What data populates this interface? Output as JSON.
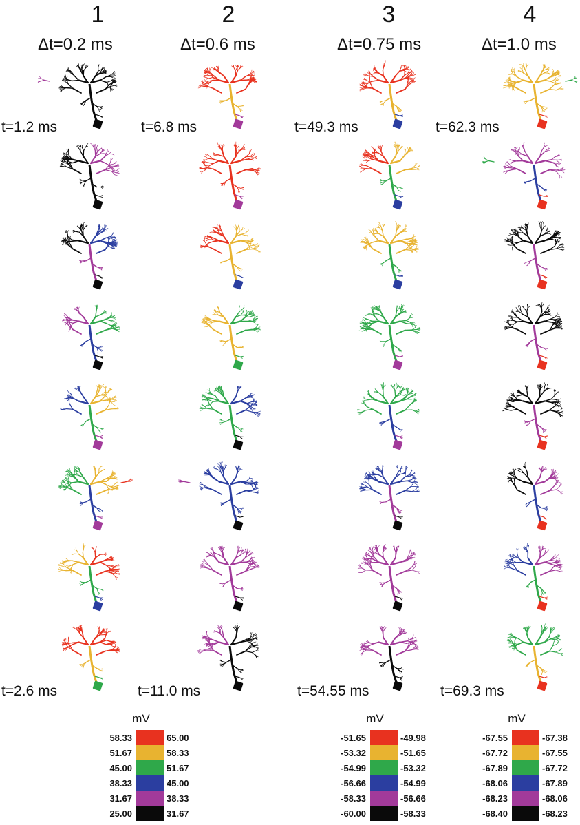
{
  "columns": [
    {
      "number": "1",
      "dt": "Δt=0.2 ms",
      "t_start": "t=1.2 ms",
      "t_end": "t=2.6 ms",
      "rows": [
        {
          "L": "black",
          "R": "black",
          "S": "black",
          "D": "black",
          "far": "purple"
        },
        {
          "L": "black",
          "R": "purple",
          "S": "black",
          "D": "black"
        },
        {
          "L": "black",
          "R": "blue",
          "S": "purple",
          "D": "black"
        },
        {
          "L": "purple",
          "R": "green",
          "S": "blue",
          "D": "black"
        },
        {
          "L": "blue",
          "R": "yellow",
          "S": "green",
          "D": "purple"
        },
        {
          "L": "green",
          "R": "yellow",
          "S": "blue",
          "D": "purple",
          "far": "red"
        },
        {
          "L": "yellow",
          "R": "red",
          "S": "green",
          "D": "blue"
        },
        {
          "L": "red",
          "R": "red",
          "S": "yellow",
          "D": "green"
        }
      ]
    },
    {
      "number": "2",
      "dt": "Δt=0.6 ms",
      "t_start": "t=6.8 ms",
      "t_end": "t=11.0 ms",
      "rows": [
        {
          "L": "red",
          "R": "red",
          "S": "yellow",
          "D": "purple"
        },
        {
          "L": "red",
          "R": "red",
          "S": "red",
          "D": "purple"
        },
        {
          "L": "red",
          "R": "yellow",
          "S": "yellow",
          "D": "blue"
        },
        {
          "L": "yellow",
          "R": "green",
          "S": "yellow",
          "D": "green"
        },
        {
          "L": "green",
          "R": "blue",
          "S": "green",
          "D": "black"
        },
        {
          "L": "blue",
          "R": "blue",
          "S": "blue",
          "D": "black",
          "far": "purple"
        },
        {
          "L": "purple",
          "R": "purple",
          "S": "purple",
          "D": "black"
        },
        {
          "L": "purple",
          "R": "black",
          "S": "black",
          "D": "black"
        }
      ]
    },
    {
      "number": "3",
      "dt": "Δt=0.75 ms",
      "t_start": "t=49.3 ms",
      "t_end": "t=54.55 ms",
      "rows": [
        {
          "L": "red",
          "R": "red",
          "S": "yellow",
          "D": "blue"
        },
        {
          "L": "red",
          "R": "yellow",
          "S": "green",
          "D": "blue"
        },
        {
          "L": "yellow",
          "R": "yellow",
          "S": "green",
          "D": "blue"
        },
        {
          "L": "green",
          "R": "green",
          "S": "green",
          "D": "purple"
        },
        {
          "L": "green",
          "R": "green",
          "S": "blue",
          "D": "purple"
        },
        {
          "L": "blue",
          "R": "blue",
          "S": "purple",
          "D": "black"
        },
        {
          "L": "purple",
          "R": "purple",
          "S": "purple",
          "D": "black"
        },
        {
          "L": "purple",
          "R": "purple",
          "S": "black",
          "D": "black"
        }
      ]
    },
    {
      "number": "4",
      "dt": "Δt=1.0 ms",
      "t_start": "t=62.3 ms",
      "t_end": "t=69.3 ms",
      "rows": [
        {
          "L": "yellow",
          "R": "yellow",
          "S": "yellow",
          "D": "red",
          "far": "green"
        },
        {
          "L": "purple",
          "R": "purple",
          "S": "blue",
          "D": "red",
          "far": "green"
        },
        {
          "L": "black",
          "R": "black",
          "S": "purple",
          "D": "red"
        },
        {
          "L": "black",
          "R": "black",
          "S": "purple",
          "D": "red"
        },
        {
          "L": "black",
          "R": "black",
          "S": "purple",
          "D": "red"
        },
        {
          "L": "black",
          "R": "purple",
          "S": "blue",
          "D": "red"
        },
        {
          "L": "blue",
          "R": "purple",
          "S": "green",
          "D": "red"
        },
        {
          "L": "green",
          "R": "green",
          "S": "yellow",
          "D": "red"
        }
      ]
    }
  ],
  "colors": {
    "red": "#e8321f",
    "yellow": "#e8b330",
    "green": "#2fa84a",
    "blue": "#2b3ea0",
    "purple": "#a23a9a",
    "black": "#0a0a0a"
  },
  "legends": [
    {
      "unit": "",
      "left": [
        "58.33",
        "51.67",
        "45.00",
        "38.33",
        "31.67",
        "25.00"
      ],
      "right": [
        "65.00",
        "58.33",
        "51.67",
        "45.00",
        "38.33",
        "31.67"
      ]
    },
    {
      "unit": "mV",
      "left": [
        "-51.65",
        "-53.32",
        "-54.99",
        "-56.66",
        "-58.33",
        "-60.00"
      ],
      "right": [
        "-49.98",
        "-51.65",
        "-53.32",
        "-54.99",
        "-56.66",
        "-58.33"
      ]
    },
    {
      "unit": "mV",
      "left": [
        "-67.55",
        "-67.72",
        "-67.89",
        "-68.06",
        "-68.23",
        "-68.40"
      ],
      "right": [
        "-67.38",
        "-67.55",
        "-67.72",
        "-67.89",
        "-68.06",
        "-68.23"
      ]
    }
  ],
  "legend_first_unit": "mV",
  "legend_colors": [
    "red",
    "yellow",
    "green",
    "blue",
    "purple",
    "black"
  ]
}
